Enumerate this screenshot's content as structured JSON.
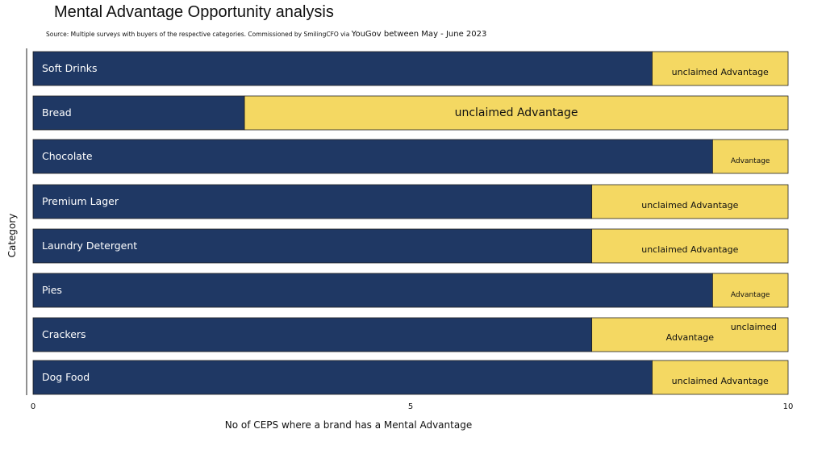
{
  "title": "Mental Advantage Opportunity analysis",
  "source_prefix": "Source:  Multiple surveys with buyers of the respective categories.  Commissioned by SmilingCFO via ",
  "source_suffix": "YouGov between May - June 2023",
  "chart_data": {
    "type": "bar",
    "orientation": "horizontal",
    "stacked": true,
    "xlabel": "No of CEPS where a brand has a Mental Advantage",
    "ylabel": "Category",
    "xlim": [
      0,
      10
    ],
    "xticks": [
      0,
      5,
      10
    ],
    "grid": false,
    "categories": [
      "Soft Drinks",
      "Bread",
      "Chocolate",
      "Premium Lager",
      "Laundry Detergent",
      "Pies",
      "Crackers",
      "Dog Food"
    ],
    "series": [
      {
        "values": [
          8.2,
          2.8,
          9.0,
          7.4,
          7.4,
          9.0,
          7.4,
          8.2
        ],
        "color": "#1f3864"
      },
      {
        "values": [
          1.8,
          7.2,
          1.0,
          2.6,
          2.6,
          1.0,
          2.6,
          1.8
        ],
        "color": "#f4d862"
      }
    ],
    "segment_labels": [
      [
        "unclaimed Advantage"
      ],
      [
        "unclaimed Advantage"
      ],
      [
        "Advantage"
      ],
      [
        "unclaimed Advantage"
      ],
      [
        "unclaimed Advantage"
      ],
      [
        "Advantage"
      ],
      [
        "unclaimed",
        "Advantage"
      ],
      [
        "unclaimed Advantage"
      ]
    ]
  }
}
